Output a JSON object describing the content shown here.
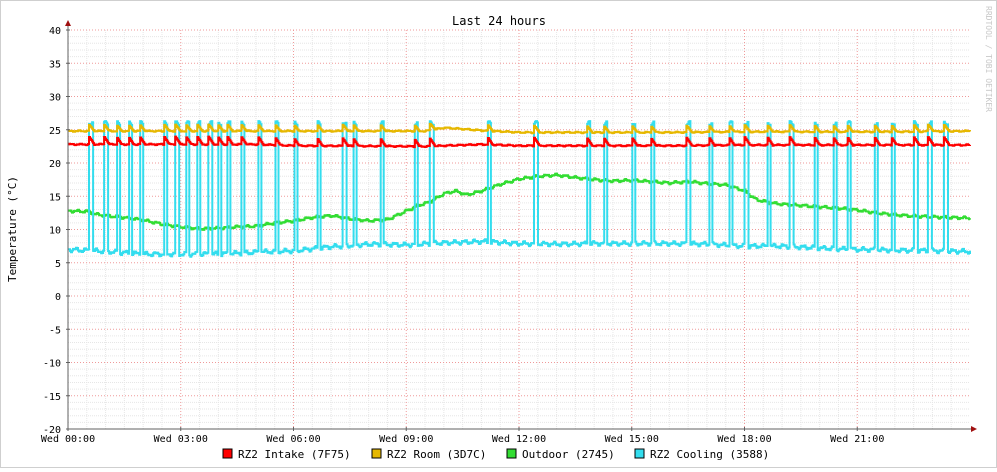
{
  "chart_data": {
    "type": "line",
    "title": "Last 24 hours",
    "ylabel": "Temperature (°C)",
    "watermark": "RRDTOOL / TOBI OETIKER",
    "ylim": [
      -20,
      40
    ],
    "yticks": [
      40,
      35,
      30,
      25,
      20,
      15,
      10,
      5,
      0,
      -5,
      -10,
      -15,
      -20
    ],
    "xlim": [
      0,
      24
    ],
    "xticks": [
      {
        "h": 0,
        "label": "Wed 00:00"
      },
      {
        "h": 3,
        "label": "Wed 03:00"
      },
      {
        "h": 6,
        "label": "Wed 06:00"
      },
      {
        "h": 9,
        "label": "Wed 09:00"
      },
      {
        "h": 12,
        "label": "Wed 12:00"
      },
      {
        "h": 15,
        "label": "Wed 15:00"
      },
      {
        "h": 18,
        "label": "Wed 18:00"
      },
      {
        "h": 21,
        "label": "Wed 21:00"
      }
    ],
    "colors": {
      "background": "#ffffff",
      "grid_minor": "#e6e6e6",
      "grid_major": "#ef9a9a",
      "axis": "#606060",
      "arrow": "#a01010",
      "text": "#000000"
    },
    "cycle_starts_h": [
      0.55,
      0.95,
      1.28,
      1.6,
      1.9,
      2.55,
      2.85,
      3.13,
      3.43,
      3.73,
      3.98,
      4.23,
      4.6,
      5.05,
      5.5,
      6.0,
      6.62,
      7.3,
      7.58,
      8.3,
      9.2,
      9.62,
      11.15,
      12.4,
      13.8,
      14.25,
      15.0,
      15.5,
      16.45,
      17.05,
      17.58,
      18.0,
      18.6,
      19.2,
      19.85,
      20.35,
      20.73,
      21.45,
      21.9,
      22.5,
      22.88,
      23.3
    ],
    "series": [
      {
        "name": "RZ2 Intake (7F75)",
        "color": "#ff0000",
        "base": [
          [
            0,
            22.8
          ],
          [
            1,
            22.8
          ],
          [
            5,
            22.8
          ],
          [
            6,
            22.6
          ],
          [
            9.5,
            22.5
          ],
          [
            11,
            22.8
          ],
          [
            12,
            22.6
          ],
          [
            16,
            22.6
          ],
          [
            18,
            22.7
          ],
          [
            20,
            22.7
          ],
          [
            24,
            22.7
          ]
        ]
      },
      {
        "name": "RZ2 Room (3D7C)",
        "color": "#e6b800",
        "base": [
          [
            0,
            24.8
          ],
          [
            5,
            24.8
          ],
          [
            7,
            24.8
          ],
          [
            9.5,
            24.8
          ],
          [
            10,
            25.3
          ],
          [
            11,
            24.9
          ],
          [
            12,
            24.6
          ],
          [
            16,
            24.6
          ],
          [
            18,
            24.7
          ],
          [
            22,
            24.7
          ],
          [
            24,
            24.8
          ]
        ]
      },
      {
        "name": "Outdoor (2745)",
        "color": "#33dd33",
        "data": [
          [
            0,
            12.8
          ],
          [
            0.5,
            12.7
          ],
          [
            0.8,
            12.2
          ],
          [
            1.5,
            11.8
          ],
          [
            2,
            11.4
          ],
          [
            2.5,
            10.8
          ],
          [
            3,
            10.4
          ],
          [
            3.5,
            10.1
          ],
          [
            4,
            10.2
          ],
          [
            4.5,
            10.4
          ],
          [
            5,
            10.5
          ],
          [
            5.5,
            11.0
          ],
          [
            6,
            11.3
          ],
          [
            6.5,
            11.8
          ],
          [
            7,
            12.1
          ],
          [
            7.5,
            11.6
          ],
          [
            8,
            11.3
          ],
          [
            8.5,
            11.5
          ],
          [
            9,
            12.8
          ],
          [
            9.3,
            13.6
          ],
          [
            9.6,
            14.1
          ],
          [
            10,
            15.4
          ],
          [
            10.3,
            15.8
          ],
          [
            10.6,
            15.2
          ],
          [
            11,
            15.8
          ],
          [
            11.5,
            16.8
          ],
          [
            12,
            17.6
          ],
          [
            12.5,
            18.0
          ],
          [
            13,
            18.2
          ],
          [
            13.5,
            17.8
          ],
          [
            14,
            17.5
          ],
          [
            14.5,
            17.3
          ],
          [
            15,
            17.4
          ],
          [
            15.5,
            17.2
          ],
          [
            16,
            17.0
          ],
          [
            16.5,
            17.2
          ],
          [
            17,
            16.9
          ],
          [
            17.5,
            16.7
          ],
          [
            18,
            15.8
          ],
          [
            18.3,
            14.5
          ],
          [
            18.7,
            14.0
          ],
          [
            19,
            13.8
          ],
          [
            19.5,
            13.6
          ],
          [
            20,
            13.4
          ],
          [
            20.5,
            13.2
          ],
          [
            21,
            12.9
          ],
          [
            21.5,
            12.5
          ],
          [
            22,
            12.2
          ],
          [
            22.5,
            12.0
          ],
          [
            23,
            11.9
          ],
          [
            23.5,
            11.8
          ],
          [
            24,
            11.7
          ]
        ]
      },
      {
        "name": "RZ2 Cooling (3588)",
        "color": "#33ddee",
        "base": [
          [
            0,
            7.0
          ],
          [
            1,
            6.7
          ],
          [
            2,
            6.3
          ],
          [
            3,
            6.3
          ],
          [
            4,
            6.3
          ],
          [
            5,
            6.6
          ],
          [
            6,
            6.8
          ],
          [
            7,
            7.4
          ],
          [
            8,
            7.8
          ],
          [
            9,
            7.7
          ],
          [
            10,
            8.0
          ],
          [
            11,
            8.2
          ],
          [
            12,
            7.9
          ],
          [
            13,
            7.8
          ],
          [
            14,
            7.9
          ],
          [
            15,
            7.9
          ],
          [
            16,
            7.9
          ],
          [
            17,
            7.8
          ],
          [
            18,
            7.5
          ],
          [
            19,
            7.5
          ],
          [
            20,
            7.2
          ],
          [
            21,
            7.0
          ],
          [
            22,
            6.9
          ],
          [
            23,
            6.8
          ],
          [
            24,
            6.7
          ]
        ]
      }
    ]
  }
}
